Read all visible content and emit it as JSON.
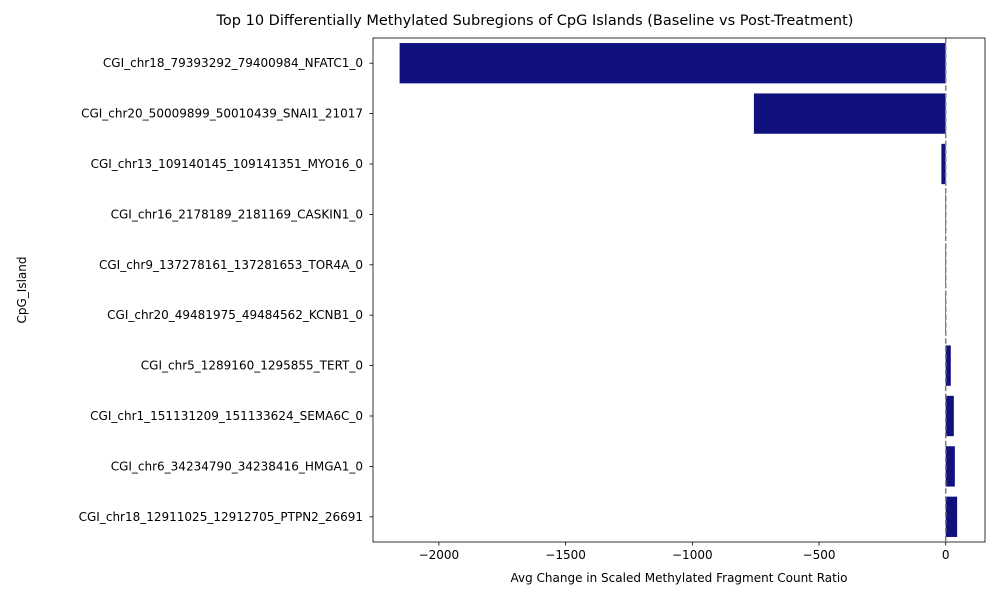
{
  "chart_data": {
    "type": "bar",
    "orientation": "horizontal",
    "title": "Top 10 Differentially Methylated Subregions of CpG Islands (Baseline vs Post-Treatment)",
    "xlabel": "Avg Change in Scaled Methylated Fragment Count Ratio",
    "ylabel": "CpG_Island",
    "xlim": [
      -2260,
      155
    ],
    "xticks": [
      -2000,
      -1500,
      -1000,
      -500,
      0
    ],
    "xtick_labels": [
      "−2000",
      "−1500",
      "−1000",
      "−500",
      "0"
    ],
    "reference_line": 0,
    "grid": false,
    "legend": "none",
    "categories": [
      "CGI_chr18_79393292_79400984_NFATC1_0",
      "CGI_chr20_50009899_50010439_SNAI1_21017",
      "CGI_chr13_109140145_109141351_MYO16_0",
      "CGI_chr16_2178189_2181169_CASKIN1_0",
      "CGI_chr9_137278161_137281653_TOR4A_0",
      "CGI_chr20_49481975_49484562_KCNB1_0",
      "CGI_chr5_1289160_1295855_TERT_0",
      "CGI_chr1_151131209_151133624_SEMA6C_0",
      "CGI_chr6_34234790_34238416_HMGA1_0",
      "CGI_chr18_12911025_12912705_PTPN2_26691"
    ],
    "values": [
      -2155,
      -757,
      -17,
      -2,
      -2,
      -2,
      20,
      32,
      36,
      45
    ],
    "bar_color": "#10107f",
    "reference_line_color": "#808080"
  }
}
